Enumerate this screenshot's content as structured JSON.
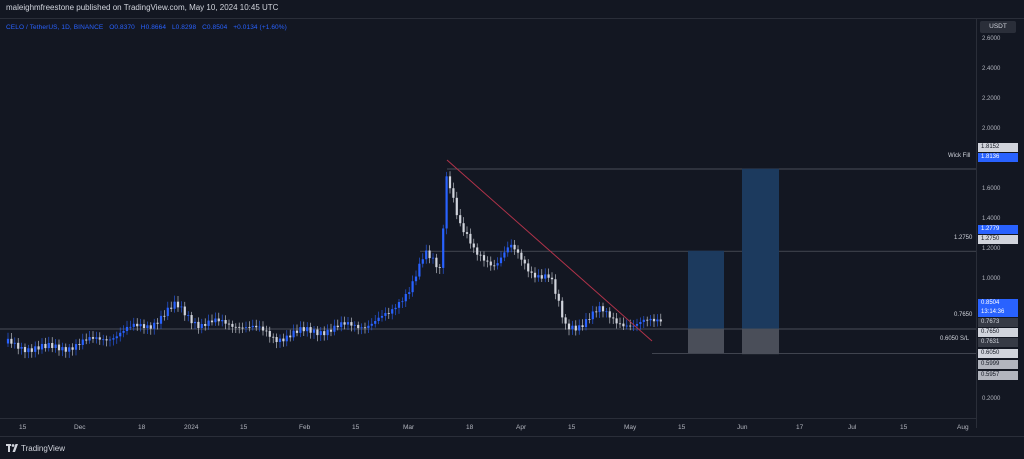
{
  "header": {
    "publisher_text": "maleighmfreestone published on TradingView.com, May 10, 2024 10:45 UTC"
  },
  "symbol": {
    "name": "CELO / TetherUS, 1D, BINANCE",
    "open": "O0.8370",
    "high": "H0.8664",
    "low": "L0.8298",
    "close": "C0.8504",
    "change": "+0.0134 (+1.60%)"
  },
  "axis": {
    "currency_button": "USDT",
    "y_ticks": [
      "2.6000",
      "2.4000",
      "2.2000",
      "2.0000",
      "1.8000",
      "1.6000",
      "1.4000",
      "1.2000",
      "1.0000",
      "0.8000",
      "0.6000",
      "0.4000",
      "0.2000"
    ],
    "x_ticks": [
      "15",
      "Dec",
      "18",
      "2024",
      "15",
      "Feb",
      "15",
      "Mar",
      "18",
      "Apr",
      "15",
      "May",
      "15",
      "Jun",
      "17",
      "Jul",
      "15",
      "Aug"
    ]
  },
  "price_tags": {
    "p1": "1.8152",
    "p2": "1.8136",
    "p3": "1.2779",
    "p4": "1.2750",
    "p5": "0.8504",
    "p5_timer": "13:14:36",
    "p6": "0.7673",
    "p7": "0.7650",
    "p8": "0.7631",
    "p9": "0.6050",
    "p10": "0.5999",
    "p11": "0.5957"
  },
  "lines": {
    "wick_fill": "Wick Fill",
    "l1275": "1.2750",
    "l0765": "0.7650",
    "l0605": "0.6050 S/L"
  },
  "footer": {
    "brand": "TradingView"
  },
  "colors": {
    "background": "#131722",
    "candle_up": "#2962ff",
    "candle_down": "#d1d4dc",
    "trendline": "#b2334a",
    "target_box": "#1c3a5e",
    "stop_box": "#4a4e59"
  }
}
